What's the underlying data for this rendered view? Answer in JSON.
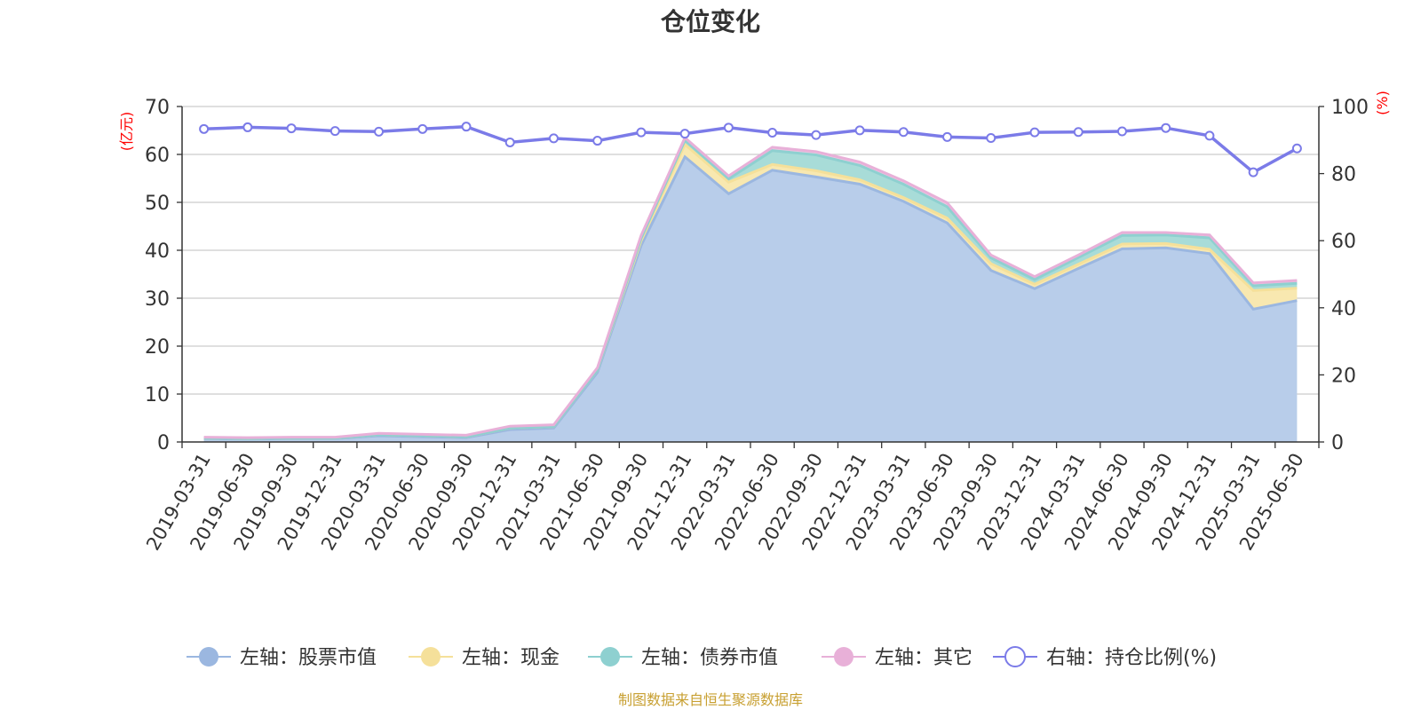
{
  "chart_data": {
    "type": "area",
    "title": "仓位变化",
    "left_unit": "(亿元)",
    "right_unit": "(%)",
    "source": "制图数据来自恒生聚源数据库",
    "categories": [
      "2019-03-31",
      "2019-06-30",
      "2019-09-30",
      "2019-12-31",
      "2020-03-31",
      "2020-06-30",
      "2020-09-30",
      "2020-12-31",
      "2021-03-31",
      "2021-06-30",
      "2021-09-30",
      "2021-12-31",
      "2022-03-31",
      "2022-06-30",
      "2022-09-30",
      "2022-12-31",
      "2023-03-31",
      "2023-06-30",
      "2023-09-30",
      "2023-12-31",
      "2024-03-31",
      "2024-06-30",
      "2024-09-30",
      "2024-12-31",
      "2025-03-31",
      "2025-06-30"
    ],
    "left_axis": {
      "min": 0,
      "max": 70,
      "ticks": [
        0,
        10,
        20,
        30,
        40,
        50,
        60,
        70
      ]
    },
    "right_axis": {
      "min": 0,
      "max": 100,
      "ticks": [
        0,
        20,
        40,
        60,
        80,
        100
      ]
    },
    "grid": true,
    "legend_position": "bottom",
    "series": [
      {
        "name": "左轴：股票市值",
        "axis": "left",
        "stack": true,
        "line_color": "#9bb7e0",
        "fill_color": "#b8cdea",
        "values": [
          0.7,
          0.6,
          0.7,
          0.7,
          1.3,
          1.1,
          0.9,
          2.6,
          2.9,
          14.5,
          41.0,
          59.5,
          51.8,
          56.7,
          55.3,
          53.8,
          50.2,
          45.7,
          35.8,
          32.0,
          36.2,
          40.3,
          40.5,
          39.3,
          27.7,
          29.5
        ]
      },
      {
        "name": "左轴：现金",
        "axis": "left",
        "stack": true,
        "line_color": "#f5e09a",
        "fill_color": "#f8e8b0",
        "values": [
          0.1,
          0.1,
          0.1,
          0.1,
          0.2,
          0.2,
          0.2,
          0.3,
          0.3,
          0.5,
          1.0,
          2.6,
          2.4,
          1.2,
          1.3,
          0.9,
          0.8,
          1.0,
          1.4,
          0.9,
          0.9,
          1.0,
          0.9,
          0.9,
          3.9,
          2.6
        ]
      },
      {
        "name": "左轴：债券市值",
        "axis": "left",
        "stack": true,
        "line_color": "#8ed0d0",
        "fill_color": "#a8dcd8",
        "values": [
          0.0,
          0.0,
          0.0,
          0.0,
          0.0,
          0.0,
          0.0,
          0.0,
          0.0,
          0.0,
          0.5,
          0.8,
          0.7,
          2.9,
          3.3,
          3.0,
          2.8,
          2.4,
          1.2,
          1.0,
          1.4,
          1.8,
          1.8,
          2.4,
          1.0,
          1.0
        ]
      },
      {
        "name": "左轴：其它",
        "axis": "left",
        "stack": true,
        "line_color": "#e8b0d8",
        "fill_color": "#efc8e2",
        "values": [
          0.2,
          0.2,
          0.2,
          0.2,
          0.3,
          0.3,
          0.3,
          0.4,
          0.4,
          0.5,
          0.6,
          0.6,
          0.6,
          0.7,
          0.7,
          0.7,
          0.7,
          0.8,
          0.6,
          0.6,
          0.5,
          0.6,
          0.5,
          0.6,
          0.6,
          0.6
        ]
      },
      {
        "name": "右轴：持仓比例(%)",
        "axis": "right",
        "stack": false,
        "line_color": "#7b7be8",
        "values": [
          93.3,
          93.8,
          93.5,
          92.7,
          92.5,
          93.3,
          94.0,
          89.3,
          90.5,
          89.8,
          92.3,
          91.9,
          93.7,
          92.2,
          91.5,
          92.9,
          92.4,
          90.9,
          90.6,
          92.3,
          92.4,
          92.6,
          93.6,
          91.3,
          80.4,
          87.5
        ]
      }
    ]
  }
}
